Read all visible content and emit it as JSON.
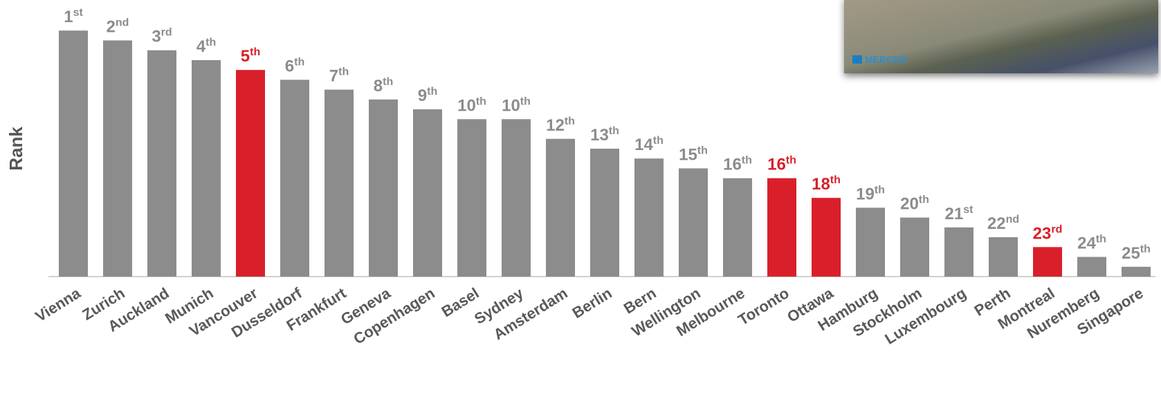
{
  "chart_data": {
    "type": "bar",
    "ylabel": "Rank",
    "categories": [
      "Vienna",
      "Zurich",
      "Auckland",
      "Munich",
      "Vancouver",
      "Dusseldorf",
      "Frankfurt",
      "Geneva",
      "Copenhagen",
      "Basel",
      "Sydney",
      "Amsterdam",
      "Berlin",
      "Bern",
      "Wellington",
      "Melbourne",
      "Toronto",
      "Ottawa",
      "Hamburg",
      "Stockholm",
      "Luxembourg",
      "Perth",
      "Montreal",
      "Nuremberg",
      "Singapore"
    ],
    "values": [
      1,
      2,
      3,
      4,
      5,
      6,
      7,
      8,
      9,
      10,
      10,
      12,
      13,
      14,
      15,
      16,
      16,
      18,
      19,
      20,
      21,
      22,
      23,
      24,
      25
    ],
    "value_labels": [
      "1st",
      "2nd",
      "3rd",
      "4th",
      "5th",
      "6th",
      "7th",
      "8th",
      "9th",
      "10th",
      "10th",
      "12th",
      "13th",
      "14th",
      "15th",
      "16th",
      "16th",
      "18th",
      "19th",
      "20th",
      "21st",
      "22nd",
      "23rd",
      "24th",
      "25th"
    ],
    "colors": [
      "#8c8c8c",
      "#8c8c8c",
      "#8c8c8c",
      "#8c8c8c",
      "#d9202a",
      "#8c8c8c",
      "#8c8c8c",
      "#8c8c8c",
      "#8c8c8c",
      "#8c8c8c",
      "#8c8c8c",
      "#8c8c8c",
      "#8c8c8c",
      "#8c8c8c",
      "#8c8c8c",
      "#8c8c8c",
      "#d9202a",
      "#d9202a",
      "#8c8c8c",
      "#8c8c8c",
      "#8c8c8c",
      "#8c8c8c",
      "#d9202a",
      "#8c8c8c",
      "#8c8c8c"
    ],
    "ylim": [
      26,
      0
    ]
  },
  "image": {
    "logo": "MERCER"
  }
}
